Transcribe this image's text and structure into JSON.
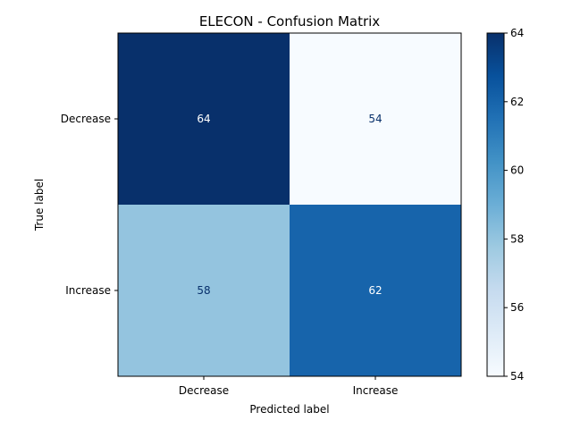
{
  "chart_data": {
    "type": "heatmap",
    "title": "ELECON - Confusion Matrix",
    "xlabel": "Predicted label",
    "ylabel": "True label",
    "x_categories": [
      "Decrease",
      "Increase"
    ],
    "y_categories": [
      "Decrease",
      "Increase"
    ],
    "values": [
      [
        64,
        54
      ],
      [
        58,
        62
      ]
    ],
    "colormap": "Blues",
    "value_range": [
      54,
      64
    ],
    "colorbar": {
      "ticks": [
        54,
        56,
        58,
        60,
        62,
        64
      ],
      "tick_labels": [
        "54",
        "56",
        "58",
        "60",
        "62",
        "64"
      ]
    },
    "cell_text_colors": {
      "on_dark": "#ffffff",
      "on_light": "#08306b"
    },
    "grid": false,
    "legend": "colorbar-right"
  }
}
